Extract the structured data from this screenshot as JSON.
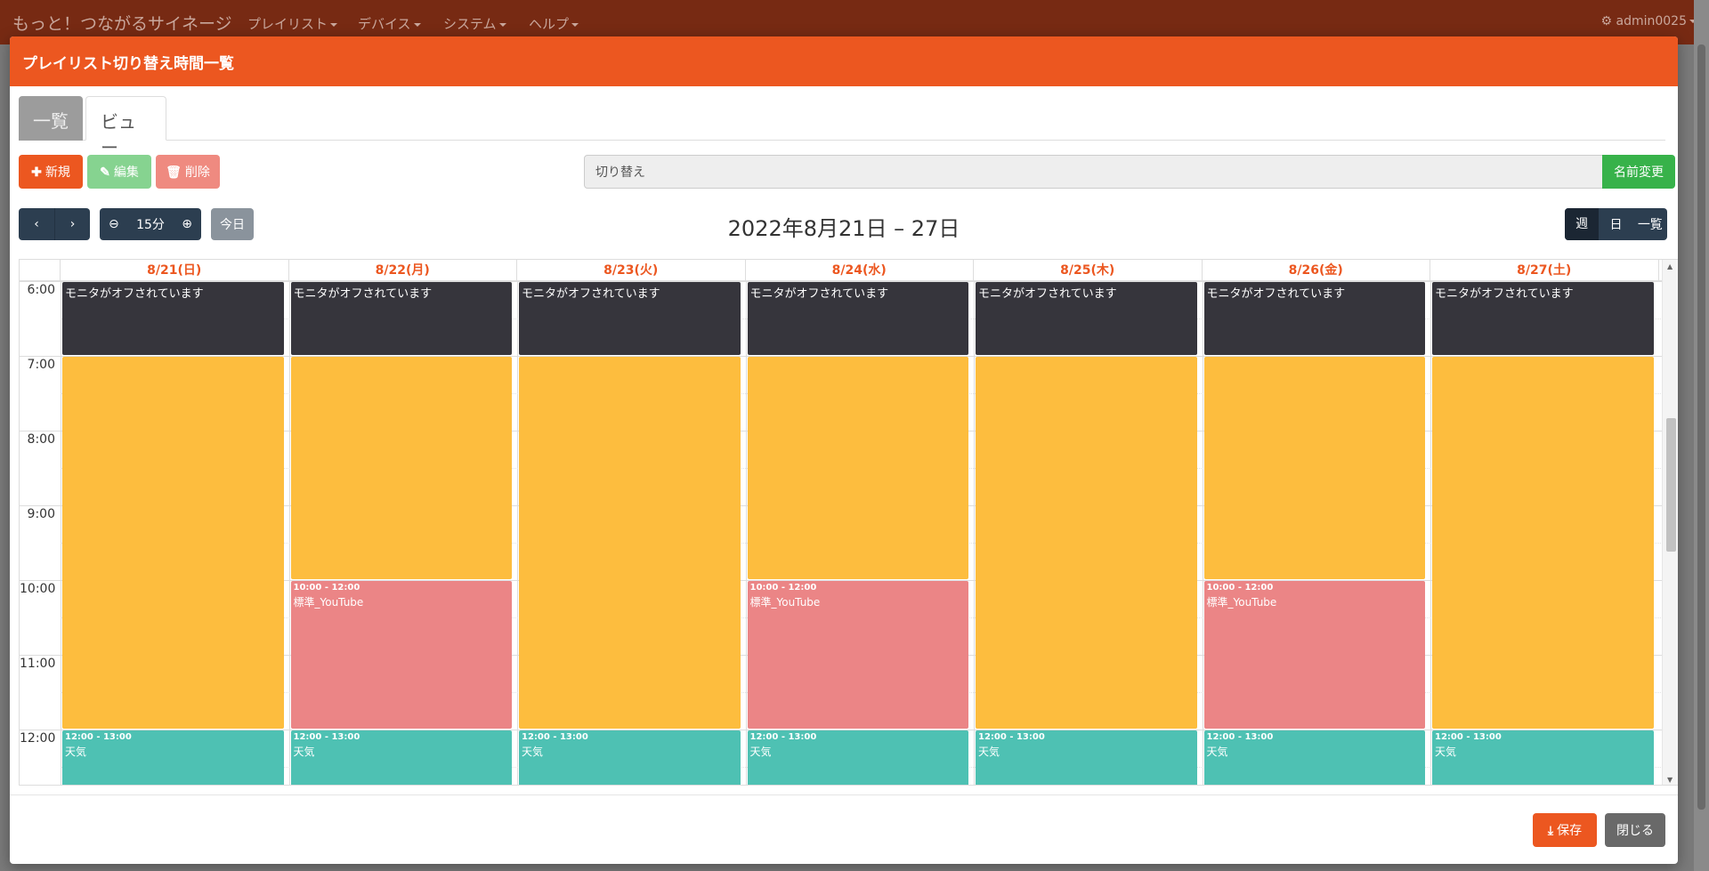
{
  "navbar": {
    "brand": "もっと！つながるサイネージ",
    "menus": [
      "プレイリスト",
      "デバイス",
      "システム",
      "ヘルプ"
    ],
    "user": "admin0025"
  },
  "modal": {
    "title": "プレイリスト切り替え時間一覧",
    "tabs": [
      {
        "label": "一覧"
      },
      {
        "label": "ビュー"
      }
    ],
    "toolbar": {
      "new": "新規",
      "edit": "編集",
      "delete": "削除"
    },
    "name_value": "切り替え",
    "rename": "名前変更",
    "calendar": {
      "zoom": "15分",
      "today": "今日",
      "title": "2022年8月21日 – 27日",
      "views": [
        "週",
        "日",
        "一覧"
      ],
      "days": [
        "8/21(日)",
        "8/22(月)",
        "8/23(火)",
        "8/24(水)",
        "8/25(木)",
        "8/26(金)",
        "8/27(土)"
      ],
      "hours": [
        "6:00",
        "7:00",
        "8:00",
        "9:00",
        "10:00",
        "11:00",
        "12:00"
      ],
      "events": {
        "off_label": "モニタがオフされています",
        "youtube_time": "10:00 - 12:00",
        "youtube_name": "標準_YouTube",
        "weather_time": "12:00 - 13:00",
        "weather_name": "天気"
      },
      "colors": {
        "off": "#36353c",
        "yellow": "#fdbd3e",
        "pink": "#eb8586",
        "teal": "#4ec1b3",
        "accent": "#ec5720"
      }
    },
    "footer": {
      "save": "保存",
      "close": "閉じる"
    }
  }
}
